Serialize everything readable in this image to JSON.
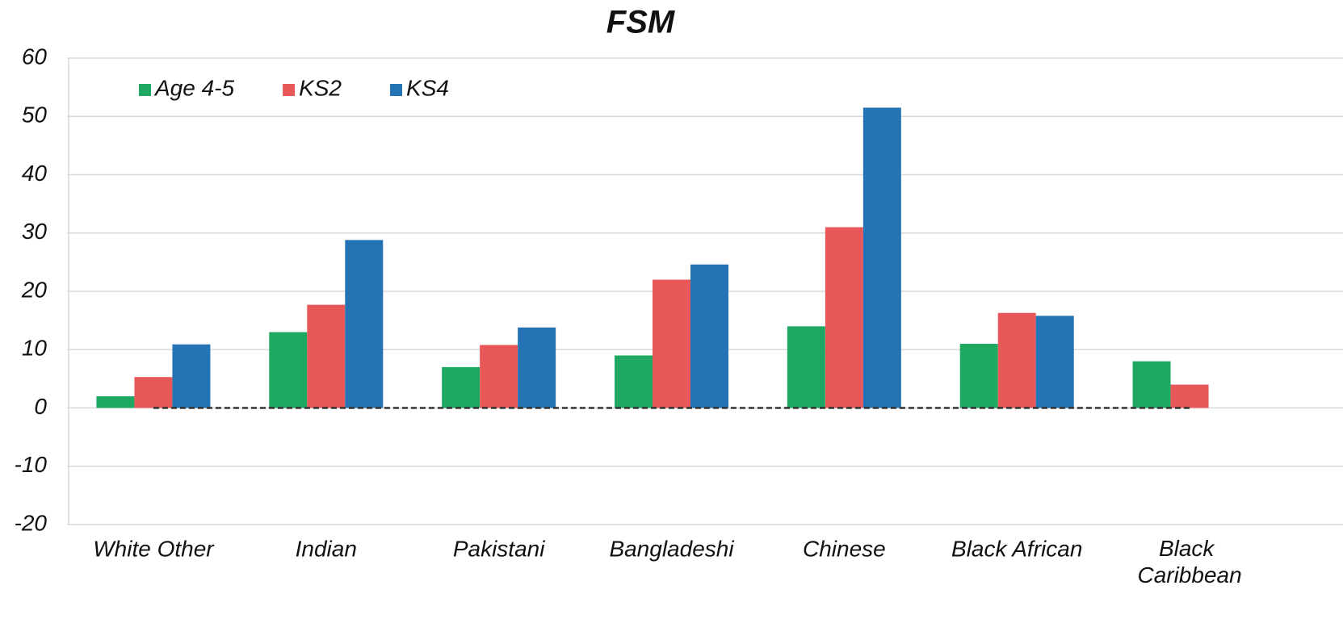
{
  "chart_data": {
    "type": "bar",
    "title": "FSM",
    "categories": [
      "White Other",
      "Indian",
      "Pakistani",
      "Bangladeshi",
      "Chinese",
      "Black African",
      "Black Caribbean"
    ],
    "series": [
      {
        "name": "Age 4-5",
        "color": "#1fa862",
        "values": [
          2,
          13,
          7,
          9,
          14,
          11,
          8
        ]
      },
      {
        "name": "KS2",
        "color": "#e85858",
        "values": [
          5.3,
          17.7,
          10.8,
          22,
          31,
          16.3,
          4
        ]
      },
      {
        "name": "KS4",
        "color": "#2474b5",
        "values": [
          10.9,
          28.8,
          13.8,
          24.6,
          51.5,
          15.8,
          null
        ]
      }
    ],
    "ylim": [
      -20,
      60
    ],
    "yticks": [
      -20,
      -10,
      0,
      10,
      20,
      30,
      40,
      50,
      60
    ],
    "grid": true,
    "legend": "top-left"
  }
}
